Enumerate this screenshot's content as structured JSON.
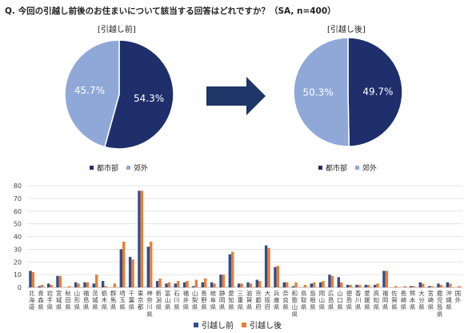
{
  "question": "Q. 今回の引越し前後のお住まいについて該当する回答はどれですか？（SA, n=400）",
  "colors": {
    "urban": "#1f2f6b",
    "suburban": "#8fa8d8",
    "before": "#2f4e8c",
    "after": "#ed7d31",
    "arrow": "#1f3668"
  },
  "icon_arrow": "right-arrow-icon",
  "chart_data": [
    {
      "type": "pie",
      "title": "[引越し前]",
      "slices": [
        {
          "name": "都市部",
          "value": 54.3,
          "label": "54.3%"
        },
        {
          "name": "郊外",
          "value": 45.7,
          "label": "45.7%"
        }
      ],
      "legend": [
        "都市部",
        "郊外"
      ]
    },
    {
      "type": "pie",
      "title": "[引越し後]",
      "slices": [
        {
          "name": "都市部",
          "value": 49.7,
          "label": "49.7%"
        },
        {
          "name": "郊外",
          "value": 50.3,
          "label": "50.3%"
        }
      ],
      "legend": [
        "都市部",
        "郊外"
      ]
    },
    {
      "type": "bar",
      "ylim": [
        0,
        80
      ],
      "yticks": [
        0,
        10,
        20,
        30,
        40,
        50,
        60,
        70,
        80
      ],
      "grid": true,
      "legend_position": "bottom",
      "categories": [
        "北海道",
        "青森県",
        "岩手県",
        "宮城県",
        "秋田県",
        "山形県",
        "福島県",
        "茨城県",
        "栃木県",
        "群馬県",
        "埼玉県",
        "千葉県",
        "東京都",
        "神奈川県",
        "新潟県",
        "富山県",
        "石川県",
        "福井県",
        "山梨県",
        "長野県",
        "岐阜県",
        "静岡県",
        "愛知県",
        "三重県",
        "滋賀県",
        "京都府",
        "大阪府",
        "兵庫県",
        "奈良県",
        "和歌山県",
        "鳥取県",
        "島根県",
        "岡山県",
        "広島県",
        "山口県",
        "徳島県",
        "香川県",
        "愛媛県",
        "高知県",
        "福岡県",
        "佐賀県",
        "長崎県",
        "熊本県",
        "大分県",
        "宮崎県",
        "鹿児島県",
        "沖縄県",
        "国外"
      ],
      "series": [
        {
          "name": "引越し前",
          "values": [
            13,
            1,
            3,
            9,
            0,
            4,
            4,
            3,
            5,
            0,
            30,
            24,
            76,
            32,
            5,
            3,
            3,
            4,
            1,
            4,
            4,
            10,
            26,
            3,
            4,
            6,
            33,
            16,
            4,
            1,
            0,
            3,
            4,
            10,
            8,
            2,
            2,
            2,
            2,
            13,
            0,
            0,
            1,
            4,
            1,
            3,
            4,
            0
          ]
        },
        {
          "name": "引越し後",
          "values": [
            12,
            2,
            2,
            9,
            1,
            3,
            4,
            10,
            1,
            3,
            36,
            22,
            76,
            36,
            7,
            4,
            5,
            5,
            6,
            7,
            3,
            10,
            28,
            3,
            3,
            5,
            31,
            17,
            4,
            4,
            2,
            4,
            5,
            9,
            4,
            2,
            2,
            2,
            3,
            13,
            1,
            1,
            1,
            3,
            1,
            2,
            3,
            1
          ]
        }
      ]
    }
  ]
}
